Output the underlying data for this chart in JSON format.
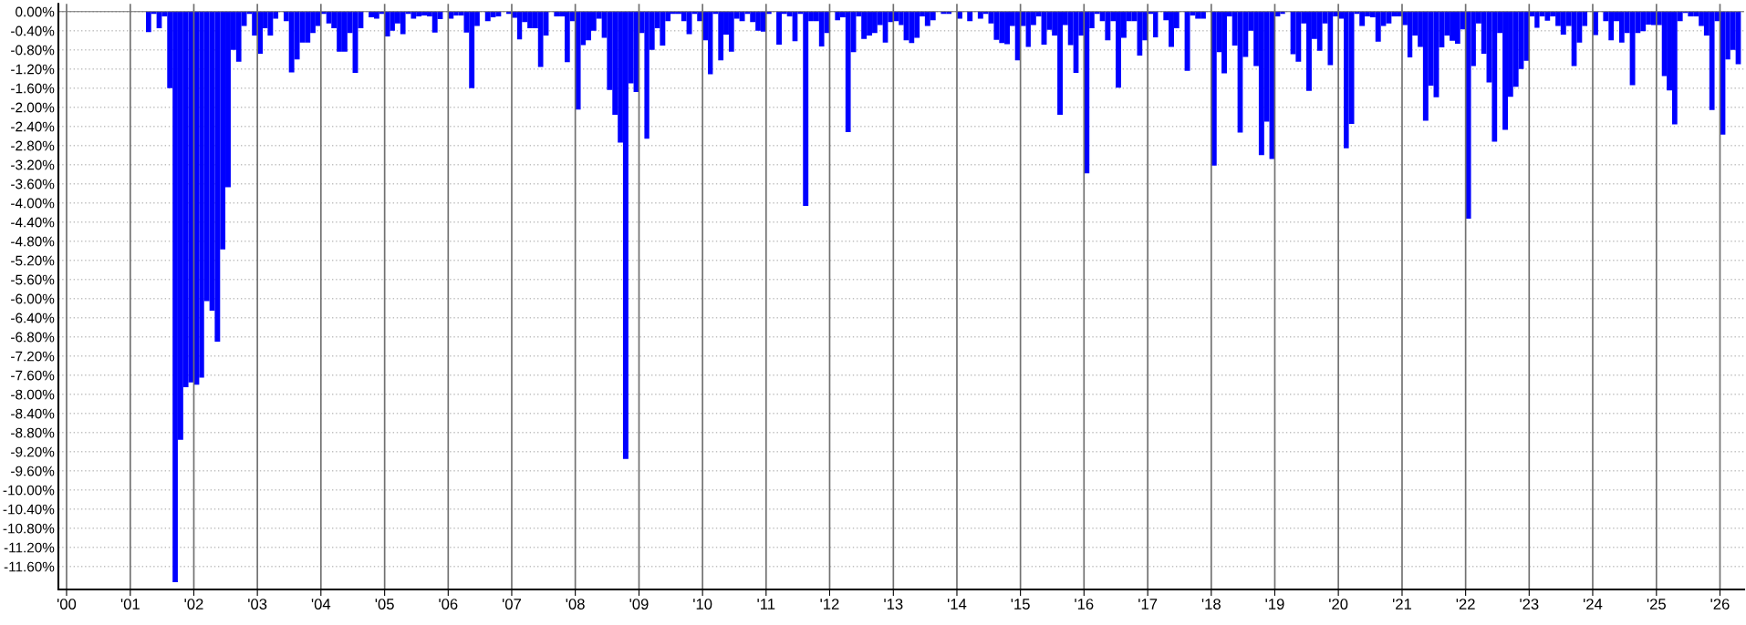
{
  "chart_data": {
    "type": "bar",
    "x": [
      "2001-04",
      "2001-05",
      "2001-06",
      "2001-07",
      "2001-08",
      "2001-09",
      "2001-10",
      "2001-11",
      "2001-12",
      "2002-01",
      "2002-02",
      "2002-03",
      "2002-04",
      "2002-05",
      "2002-06",
      "2002-07",
      "2002-08",
      "2002-09",
      "2002-10",
      "2002-11",
      "2002-12",
      "2003-01",
      "2003-02",
      "2003-03",
      "2003-04",
      "2003-05",
      "2003-06",
      "2003-07",
      "2003-08",
      "2003-09",
      "2003-10",
      "2003-11",
      "2003-12",
      "2004-01",
      "2004-02",
      "2004-03",
      "2004-04",
      "2004-05",
      "2004-06",
      "2004-07",
      "2004-08",
      "2004-09",
      "2004-10",
      "2004-11",
      "2004-12",
      "2005-01",
      "2005-02",
      "2005-03",
      "2005-04",
      "2005-05",
      "2005-06",
      "2005-07",
      "2005-08",
      "2005-09",
      "2005-10",
      "2005-11",
      "2005-12",
      "2006-01",
      "2006-02",
      "2006-03",
      "2006-04",
      "2006-05",
      "2006-06",
      "2006-07",
      "2006-08",
      "2006-09",
      "2006-10",
      "2006-11",
      "2006-12",
      "2007-01",
      "2007-02",
      "2007-03",
      "2007-04",
      "2007-05",
      "2007-06",
      "2007-07",
      "2007-08",
      "2007-09",
      "2007-10",
      "2007-11",
      "2007-12",
      "2008-01",
      "2008-02",
      "2008-03",
      "2008-04",
      "2008-05",
      "2008-06",
      "2008-07",
      "2008-08",
      "2008-09",
      "2008-10",
      "2008-11",
      "2008-12",
      "2009-01",
      "2009-02",
      "2009-03",
      "2009-04",
      "2009-05",
      "2009-06",
      "2009-07",
      "2009-08",
      "2009-09",
      "2009-10",
      "2009-11",
      "2009-12",
      "2010-01",
      "2010-02",
      "2010-03",
      "2010-04",
      "2010-05",
      "2010-06",
      "2010-07",
      "2010-08",
      "2010-09",
      "2010-10",
      "2010-11",
      "2010-12",
      "2011-01",
      "2011-02",
      "2011-03",
      "2011-04",
      "2011-05",
      "2011-06",
      "2011-07",
      "2011-08",
      "2011-09",
      "2011-10",
      "2011-11",
      "2011-12",
      "2012-01",
      "2012-02",
      "2012-03",
      "2012-04",
      "2012-05",
      "2012-06",
      "2012-07",
      "2012-08",
      "2012-09",
      "2012-10",
      "2012-11",
      "2012-12",
      "2013-01",
      "2013-02",
      "2013-03",
      "2013-04",
      "2013-05",
      "2013-06",
      "2013-07",
      "2013-08",
      "2013-09",
      "2013-10",
      "2013-11",
      "2013-12",
      "2014-01",
      "2014-02",
      "2014-03",
      "2014-04",
      "2014-05",
      "2014-06",
      "2014-07",
      "2014-08",
      "2014-09",
      "2014-10",
      "2014-11",
      "2014-12",
      "2015-01",
      "2015-02",
      "2015-03",
      "2015-04",
      "2015-05",
      "2015-06",
      "2015-07",
      "2015-08",
      "2015-09",
      "2015-10",
      "2015-11",
      "2015-12",
      "2016-01",
      "2016-02",
      "2016-03",
      "2016-04",
      "2016-05",
      "2016-06",
      "2016-07",
      "2016-08",
      "2016-09",
      "2016-10",
      "2016-11",
      "2016-12",
      "2017-01",
      "2017-02",
      "2017-03",
      "2017-04",
      "2017-05",
      "2017-06",
      "2017-07",
      "2017-08",
      "2017-09",
      "2017-10",
      "2017-11",
      "2017-12",
      "2018-01",
      "2018-02",
      "2018-03",
      "2018-04",
      "2018-05",
      "2018-06",
      "2018-07",
      "2018-08",
      "2018-09",
      "2018-10",
      "2018-11",
      "2018-12",
      "2019-01",
      "2019-02",
      "2019-03",
      "2019-04",
      "2019-05",
      "2019-06",
      "2019-07",
      "2019-08",
      "2019-09",
      "2019-10",
      "2019-11",
      "2019-12",
      "2020-01",
      "2020-02",
      "2020-03",
      "2020-04",
      "2020-05",
      "2020-06",
      "2020-07",
      "2020-08",
      "2020-09",
      "2020-10",
      "2020-11",
      "2020-12",
      "2021-01",
      "2021-02",
      "2021-03",
      "2021-04",
      "2021-05",
      "2021-06",
      "2021-07",
      "2021-08",
      "2021-09",
      "2021-10",
      "2021-11",
      "2021-12",
      "2022-01",
      "2022-02",
      "2022-03",
      "2022-04",
      "2022-05",
      "2022-06",
      "2022-07",
      "2022-08",
      "2022-09",
      "2022-10",
      "2022-11",
      "2022-12",
      "2023-01",
      "2023-02",
      "2023-03",
      "2023-04",
      "2023-05",
      "2023-06",
      "2023-07",
      "2023-08",
      "2023-09",
      "2023-10",
      "2023-11",
      "2023-12",
      "2024-01",
      "2024-02",
      "2024-03",
      "2024-04",
      "2024-05",
      "2024-06",
      "2024-07",
      "2024-08",
      "2024-09",
      "2024-10",
      "2024-11",
      "2024-12",
      "2025-01",
      "2025-02",
      "2025-03",
      "2025-04",
      "2025-05",
      "2025-06",
      "2025-07",
      "2025-08",
      "2025-09",
      "2025-10",
      "2025-11",
      "2025-12",
      "2026-01",
      "2026-02",
      "2026-03",
      "2026-04"
    ],
    "series": [
      {
        "color": "#0000ff",
        "values": [
          -0.43,
          -0.05,
          -0.35,
          -0.1,
          -1.6,
          -11.93,
          -8.95,
          -7.85,
          -7.75,
          -7.8,
          -7.65,
          -6.05,
          -6.25,
          -6.9,
          -4.97,
          -3.67,
          -0.8,
          -1.05,
          -0.3,
          -0.05,
          -0.5,
          -0.88,
          -0.35,
          -0.5,
          -0.15,
          0,
          -0.2,
          -1.27,
          -1.0,
          -0.65,
          -0.65,
          -0.45,
          -0.3,
          -0.05,
          -0.25,
          -0.35,
          -0.84,
          -0.84,
          -0.45,
          -1.28,
          -0.35,
          0,
          -0.12,
          -0.15,
          -0.05,
          -0.52,
          -0.4,
          -0.25,
          -0.47,
          -0.05,
          -0.15,
          -0.1,
          -0.08,
          -0.1,
          -0.44,
          -0.16,
          0,
          -0.15,
          -0.08,
          -0.08,
          -0.44,
          -1.6,
          -0.3,
          0,
          -0.2,
          -0.12,
          -0.1,
          0,
          -0.05,
          -0.13,
          -0.58,
          -0.22,
          -0.35,
          -0.35,
          -1.16,
          -0.5,
          0,
          -0.1,
          -0.1,
          -1.06,
          -0.2,
          -2.05,
          -0.7,
          -0.6,
          -0.4,
          -0.15,
          -0.55,
          -1.64,
          -2.16,
          -2.74,
          -9.35,
          -1.5,
          -1.68,
          -0.45,
          -2.66,
          -0.8,
          -0.35,
          -0.71,
          -0.2,
          -0.05,
          -0.05,
          -0.2,
          -0.47,
          -0.05,
          -0.2,
          -0.6,
          -1.31,
          -0.05,
          -1.02,
          -0.48,
          -0.84,
          -0.15,
          -0.2,
          -0.05,
          -0.22,
          -0.4,
          -0.42,
          -0.05,
          0,
          -0.69,
          -0.05,
          -0.1,
          -0.62,
          -0.05,
          -4.06,
          -0.2,
          -0.2,
          -0.73,
          -0.45,
          0,
          -0.18,
          -0.12,
          -2.52,
          -0.85,
          -0.1,
          -0.57,
          -0.5,
          -0.45,
          -0.28,
          -0.65,
          -0.22,
          -0.2,
          -0.28,
          -0.6,
          -0.66,
          -0.55,
          -0.1,
          -0.3,
          -0.18,
          0,
          -0.05,
          -0.05,
          0,
          -0.15,
          0,
          -0.2,
          0,
          -0.15,
          -0.05,
          -0.25,
          -0.59,
          -0.66,
          -0.68,
          -0.3,
          -1.02,
          -0.3,
          -0.74,
          -0.28,
          -0.1,
          -0.69,
          -0.38,
          -0.5,
          -2.16,
          -0.28,
          -0.7,
          -1.28,
          -0.5,
          -3.38,
          -0.35,
          -0.05,
          -0.2,
          -0.6,
          -0.2,
          -1.59,
          -0.55,
          -0.2,
          -0.2,
          -0.92,
          -0.6,
          -0.05,
          -0.54,
          0,
          -0.18,
          -0.74,
          -0.35,
          0,
          -1.24,
          -0.08,
          -0.15,
          -0.15,
          0,
          -3.22,
          -0.85,
          -1.29,
          -0.1,
          -0.71,
          -2.53,
          -0.95,
          -0.4,
          -1.14,
          -3.0,
          -2.3,
          -3.08,
          -0.1,
          -0.05,
          0,
          -0.89,
          -1.05,
          -0.25,
          -1.66,
          -0.57,
          -0.82,
          -0.25,
          -1.12,
          -0.1,
          -0.15,
          -2.86,
          -2.35,
          -0.05,
          -0.3,
          -0.1,
          -0.12,
          -0.63,
          -0.3,
          -0.25,
          -0.1,
          -0.1,
          -0.28,
          -0.96,
          -0.5,
          -0.74,
          -2.28,
          -1.55,
          -1.79,
          -0.75,
          -0.5,
          -0.61,
          -0.67,
          -0.37,
          -4.33,
          -1.14,
          -0.25,
          -0.88,
          -1.48,
          -2.72,
          -0.45,
          -2.47,
          -1.78,
          -1.57,
          -1.2,
          -1.03,
          -0.1,
          -0.34,
          -0.1,
          -0.19,
          -0.1,
          -0.3,
          -0.48,
          -0.3,
          -1.14,
          -0.65,
          -0.3,
          0,
          -0.49,
          0,
          -0.2,
          -0.6,
          -0.2,
          -0.65,
          -0.45,
          -1.54,
          -0.45,
          -0.41,
          -0.27,
          -0.28,
          -0.28,
          -1.35,
          -1.65,
          -2.36,
          -0.2,
          -0.03,
          -0.1,
          -0.1,
          -0.3,
          -0.5,
          -2.06,
          -0.2,
          -2.57,
          -1.0,
          -0.8,
          -1.1
        ]
      }
    ],
    "xlim": [
      "1999-11-15",
      "2026-05-20"
    ],
    "xticks": [
      {
        "value": "2000",
        "label": "'00"
      },
      {
        "value": "2001",
        "label": "'01"
      },
      {
        "value": "2002",
        "label": "'02"
      },
      {
        "value": "2003",
        "label": "'03"
      },
      {
        "value": "2004",
        "label": "'04"
      },
      {
        "value": "2005",
        "label": "'05"
      },
      {
        "value": "2006",
        "label": "'06"
      },
      {
        "value": "2007",
        "label": "'07"
      },
      {
        "value": "2008",
        "label": "'08"
      },
      {
        "value": "2009",
        "label": "'09"
      },
      {
        "value": "2010",
        "label": "'10"
      },
      {
        "value": "2011",
        "label": "'11"
      },
      {
        "value": "2012",
        "label": "'12"
      },
      {
        "value": "2013",
        "label": "'13"
      },
      {
        "value": "2014",
        "label": "'14"
      },
      {
        "value": "2015",
        "label": "'15"
      },
      {
        "value": "2016",
        "label": "'16"
      },
      {
        "value": "2017",
        "label": "'17"
      },
      {
        "value": "2018",
        "label": "'18"
      },
      {
        "value": "2019",
        "label": "'19"
      },
      {
        "value": "2020",
        "label": "'20"
      },
      {
        "value": "2021",
        "label": "'21"
      },
      {
        "value": "2022",
        "label": "'22"
      },
      {
        "value": "2023",
        "label": "'23"
      },
      {
        "value": "2024",
        "label": "'24"
      },
      {
        "value": "2025",
        "label": "'25"
      },
      {
        "value": "2026",
        "label": "'26"
      }
    ],
    "ylim": [
      -12.08,
      0.16
    ],
    "yticks": [
      {
        "value": 0,
        "label": "0.00%"
      },
      {
        "value": -0.4,
        "label": "-0.40%"
      },
      {
        "value": -0.8,
        "label": "-0.80%"
      },
      {
        "value": -1.2,
        "label": "-1.20%"
      },
      {
        "value": -1.6,
        "label": "-1.60%"
      },
      {
        "value": -2.0,
        "label": "-2.00%"
      },
      {
        "value": -2.4,
        "label": "-2.40%"
      },
      {
        "value": -2.8,
        "label": "-2.80%"
      },
      {
        "value": -3.2,
        "label": "-3.20%"
      },
      {
        "value": -3.6,
        "label": "-3.60%"
      },
      {
        "value": -4.0,
        "label": "-4.00%"
      },
      {
        "value": -4.4,
        "label": "-4.40%"
      },
      {
        "value": -4.8,
        "label": "-4.80%"
      },
      {
        "value": -5.2,
        "label": "-5.20%"
      },
      {
        "value": -5.6,
        "label": "-5.60%"
      },
      {
        "value": -6.0,
        "label": "-6.00%"
      },
      {
        "value": -6.4,
        "label": "-6.40%"
      },
      {
        "value": -6.8,
        "label": "-6.80%"
      },
      {
        "value": -7.2,
        "label": "-7.20%"
      },
      {
        "value": -7.6,
        "label": "-7.60%"
      },
      {
        "value": -8.0,
        "label": "-8.00%"
      },
      {
        "value": -8.4,
        "label": "-8.40%"
      },
      {
        "value": -8.8,
        "label": "-8.80%"
      },
      {
        "value": -9.2,
        "label": "-9.20%"
      },
      {
        "value": -9.6,
        "label": "-9.60%"
      },
      {
        "value": -10.0,
        "label": "-10.00%"
      },
      {
        "value": -10.4,
        "label": "-10.40%"
      },
      {
        "value": -10.8,
        "label": "-10.80%"
      },
      {
        "value": -11.2,
        "label": "-11.20%"
      },
      {
        "value": -11.6,
        "label": "-11.60%"
      }
    ],
    "ref_lines": [
      {
        "axis": "y",
        "value": 0,
        "color": "#707070"
      }
    ],
    "grid": true
  }
}
